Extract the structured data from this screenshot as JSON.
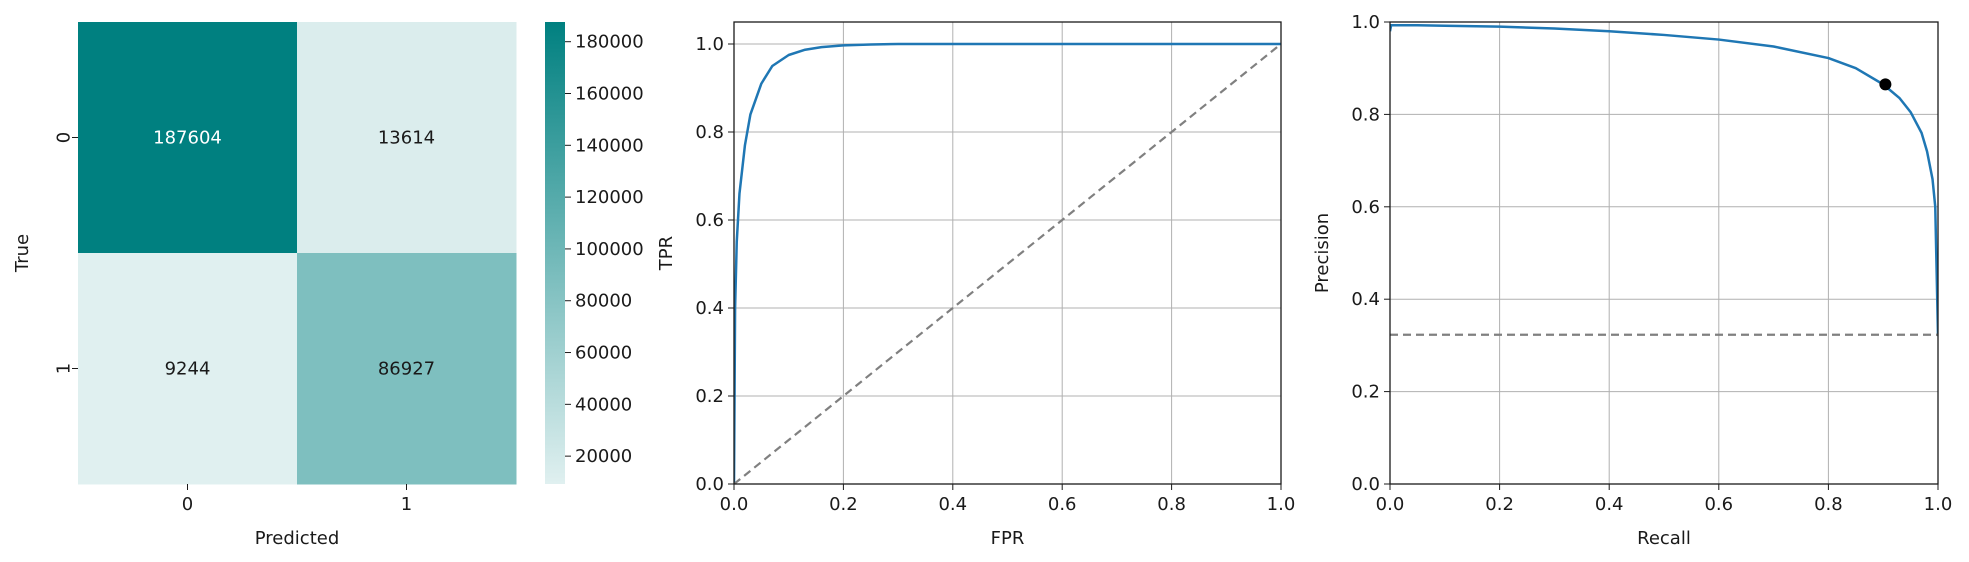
{
  "colors": {
    "cm_high": "#008080",
    "cm_low": "#e0f0f0",
    "curve": "#1f77b4",
    "baseline": "#808080",
    "grid": "#b0b0b0",
    "marker": "#000000"
  },
  "chart_data": [
    {
      "type": "heatmap",
      "xlabel": "Predicted",
      "ylabel": "True",
      "x_categories": [
        "0",
        "1"
      ],
      "y_categories": [
        "0",
        "1"
      ],
      "values": [
        [
          187604,
          13614
        ],
        [
          9244,
          86927
        ]
      ],
      "value_labels": [
        [
          "187604",
          "13614"
        ],
        [
          "9244",
          "86927"
        ]
      ],
      "colorbar": {
        "min": 9244,
        "max": 187604,
        "ticks": [
          20000,
          40000,
          60000,
          80000,
          100000,
          120000,
          140000,
          160000,
          180000
        ],
        "tick_labels": [
          "20000",
          "40000",
          "60000",
          "80000",
          "100000",
          "120000",
          "140000",
          "160000",
          "180000"
        ]
      }
    },
    {
      "type": "line",
      "xlabel": "FPR",
      "ylabel": "TPR",
      "xlim": [
        0,
        1
      ],
      "ylim": [
        0,
        1.05
      ],
      "xticks": [
        0,
        0.2,
        0.4,
        0.6,
        0.8,
        1.0
      ],
      "xtick_labels": [
        "0.0",
        "0.2",
        "0.4",
        "0.6",
        "0.8",
        "1.0"
      ],
      "yticks": [
        0,
        0.2,
        0.4,
        0.6,
        0.8,
        1.0
      ],
      "ytick_labels": [
        "0.0",
        "0.2",
        "0.4",
        "0.6",
        "0.8",
        "1.0"
      ],
      "grid": true,
      "series": [
        {
          "style": "solid",
          "x": [
            0,
            0.002,
            0.005,
            0.01,
            0.02,
            0.03,
            0.05,
            0.07,
            0.1,
            0.13,
            0.16,
            0.2,
            0.25,
            0.3,
            0.4,
            0.6,
            0.8,
            1.0
          ],
          "y": [
            0,
            0.4,
            0.55,
            0.66,
            0.77,
            0.84,
            0.91,
            0.95,
            0.975,
            0.987,
            0.993,
            0.997,
            0.999,
            1.0,
            1.0,
            1.0,
            1.0,
            1.0
          ]
        },
        {
          "style": "dashed",
          "x": [
            0,
            1
          ],
          "y": [
            0,
            1
          ]
        }
      ]
    },
    {
      "type": "line",
      "xlabel": "Recall",
      "ylabel": "Precision",
      "xlim": [
        0,
        1
      ],
      "ylim": [
        0,
        1
      ],
      "xticks": [
        0,
        0.2,
        0.4,
        0.6,
        0.8,
        1.0
      ],
      "xtick_labels": [
        "0.0",
        "0.2",
        "0.4",
        "0.6",
        "0.8",
        "1.0"
      ],
      "yticks": [
        0,
        0.2,
        0.4,
        0.6,
        0.8,
        1.0
      ],
      "ytick_labels": [
        "0.0",
        "0.2",
        "0.4",
        "0.6",
        "0.8",
        "1.0"
      ],
      "grid": true,
      "series": [
        {
          "style": "solid",
          "x": [
            0,
            0.002,
            0.05,
            0.1,
            0.2,
            0.3,
            0.4,
            0.5,
            0.6,
            0.7,
            0.8,
            0.85,
            0.9,
            0.93,
            0.95,
            0.97,
            0.98,
            0.99,
            0.995,
            1.0
          ],
          "y": [
            0.98,
            0.993,
            0.993,
            0.992,
            0.99,
            0.986,
            0.98,
            0.972,
            0.962,
            0.947,
            0.922,
            0.9,
            0.865,
            0.835,
            0.805,
            0.76,
            0.72,
            0.66,
            0.6,
            0.32
          ]
        },
        {
          "style": "dashed",
          "x": [
            0,
            1
          ],
          "y": [
            0.323,
            0.323
          ]
        }
      ],
      "points": [
        {
          "x": 0.904,
          "y": 0.865
        }
      ]
    }
  ]
}
